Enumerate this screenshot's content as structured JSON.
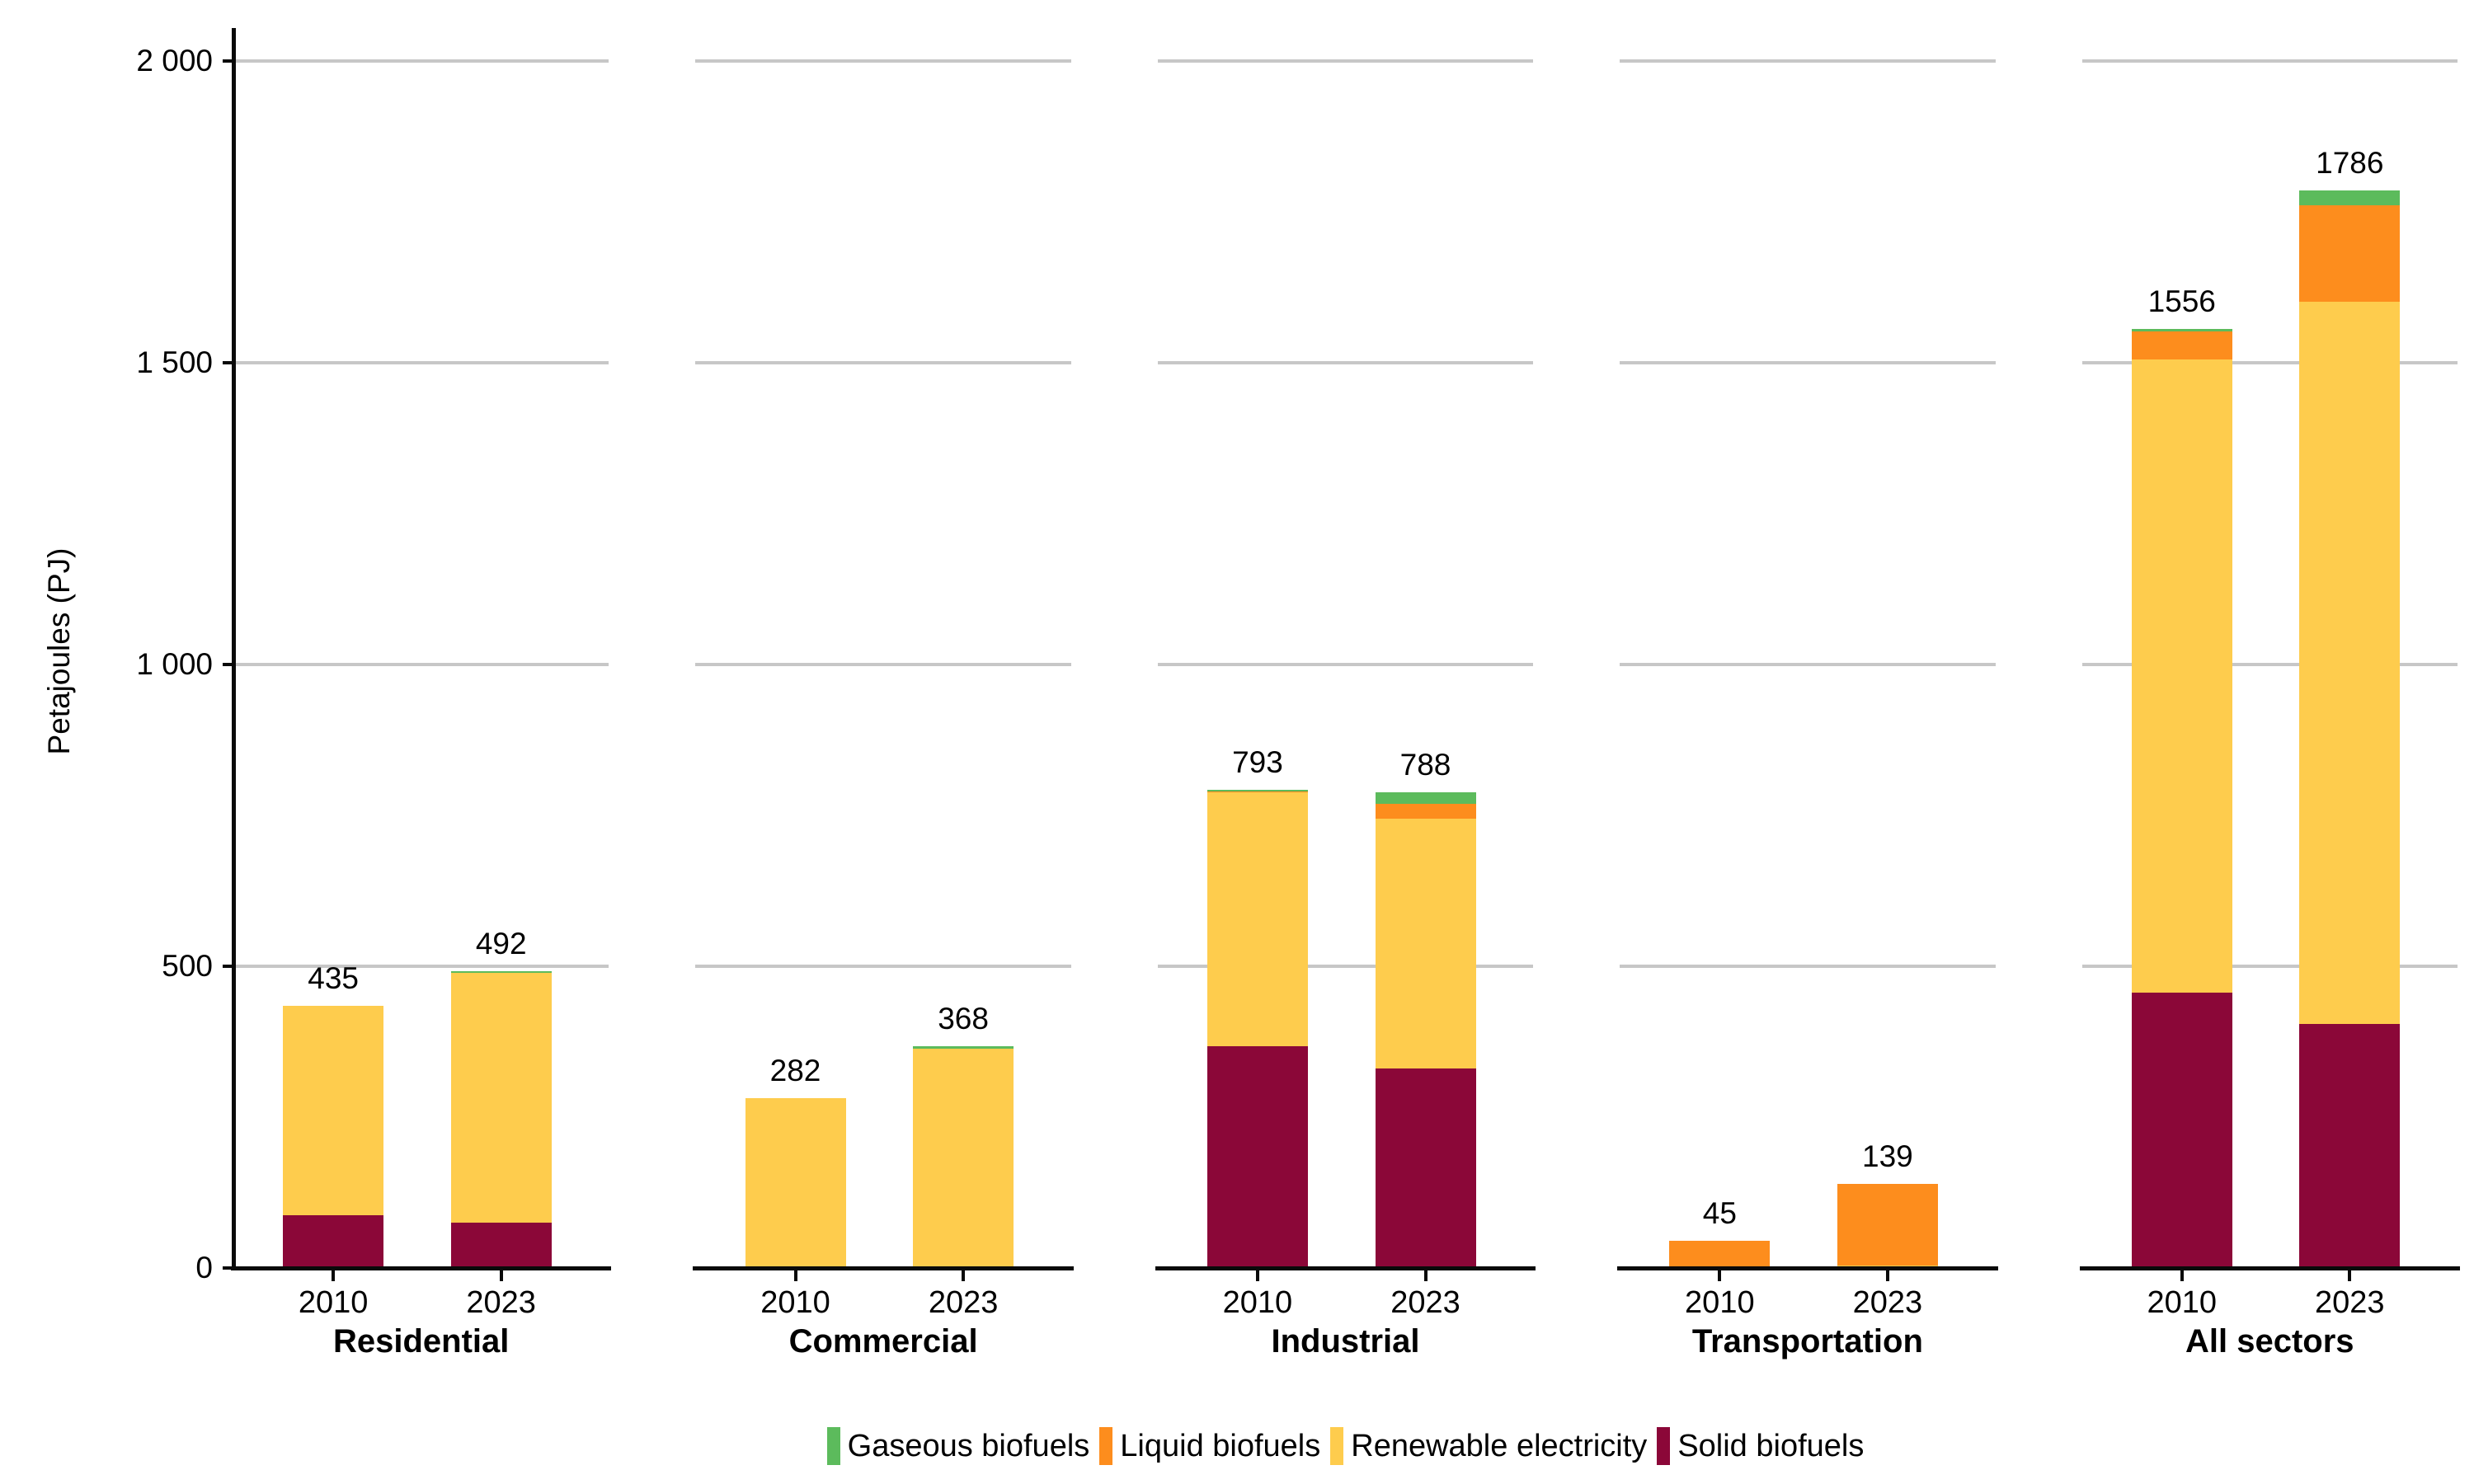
{
  "chart_data": {
    "type": "bar",
    "stacked": true,
    "title": "",
    "ylabel": "Petajoules (PJ)",
    "xlabel": "",
    "unit": "PJ",
    "ylim": [
      0,
      2000
    ],
    "grid": true,
    "legend_position": "bottom",
    "yticks": [
      0,
      500,
      1000,
      1500,
      2000
    ],
    "ytick_labels": [
      "0",
      "500",
      "1 000",
      "1 500",
      "2 000"
    ],
    "years": [
      "2010",
      "2023"
    ],
    "stack_order_bottom_to_top": [
      "Solid biofuels",
      "Renewable electricity",
      "Liquid biofuels",
      "Gaseous biofuels"
    ],
    "series_colors": {
      "Gaseous biofuels": "#5cbb5c",
      "Liquid biofuels": "#fd8d1d",
      "Renewable electricity": "#fecc4d",
      "Solid biofuels": "#8b0738"
    },
    "legend": [
      {
        "label": "Gaseous biofuels",
        "color": "#5cbb5c"
      },
      {
        "label": "Liquid biofuels",
        "color": "#fd8d1d"
      },
      {
        "label": "Renewable electricity",
        "color": "#fecc4d"
      },
      {
        "label": "Solid biofuels",
        "color": "#8b0738"
      }
    ],
    "facets": [
      {
        "label": "Residential",
        "bars": [
          {
            "year": "2010",
            "total": 435,
            "segments": {
              "Solid biofuels": 88,
              "Renewable electricity": 347,
              "Liquid biofuels": 0,
              "Gaseous biofuels": 0
            }
          },
          {
            "year": "2023",
            "total": 492,
            "segments": {
              "Solid biofuels": 75,
              "Renewable electricity": 414,
              "Liquid biofuels": 0,
              "Gaseous biofuels": 3
            }
          }
        ]
      },
      {
        "label": "Commercial",
        "bars": [
          {
            "year": "2010",
            "total": 282,
            "segments": {
              "Solid biofuels": 0,
              "Renewable electricity": 282,
              "Liquid biofuels": 0,
              "Gaseous biofuels": 0
            }
          },
          {
            "year": "2023",
            "total": 368,
            "segments": {
              "Solid biofuels": 0,
              "Renewable electricity": 364,
              "Liquid biofuels": 0,
              "Gaseous biofuels": 4
            }
          }
        ]
      },
      {
        "label": "Industrial",
        "bars": [
          {
            "year": "2010",
            "total": 793,
            "segments": {
              "Solid biofuels": 368,
              "Renewable electricity": 420,
              "Liquid biofuels": 2,
              "Gaseous biofuels": 3
            }
          },
          {
            "year": "2023",
            "total": 788,
            "segments": {
              "Solid biofuels": 330,
              "Renewable electricity": 414,
              "Liquid biofuels": 25,
              "Gaseous biofuels": 19
            }
          }
        ]
      },
      {
        "label": "Transportation",
        "bars": [
          {
            "year": "2010",
            "total": 45,
            "segments": {
              "Solid biofuels": 0,
              "Renewable electricity": 0,
              "Liquid biofuels": 45,
              "Gaseous biofuels": 0
            }
          },
          {
            "year": "2023",
            "total": 139,
            "segments": {
              "Solid biofuels": 0,
              "Renewable electricity": 4,
              "Liquid biofuels": 135,
              "Gaseous biofuels": 0
            }
          }
        ]
      },
      {
        "label": "All sectors",
        "bars": [
          {
            "year": "2010",
            "total": 1556,
            "segments": {
              "Solid biofuels": 456,
              "Renewable electricity": 1049,
              "Liquid biofuels": 47,
              "Gaseous biofuels": 4
            }
          },
          {
            "year": "2023",
            "total": 1786,
            "segments": {
              "Solid biofuels": 405,
              "Renewable electricity": 1196,
              "Liquid biofuels": 160,
              "Gaseous biofuels": 25
            }
          }
        ]
      }
    ],
    "colors": {
      "gridline": "#c7c7c7",
      "axis": "#0a0a0a",
      "text": "#000000"
    }
  }
}
